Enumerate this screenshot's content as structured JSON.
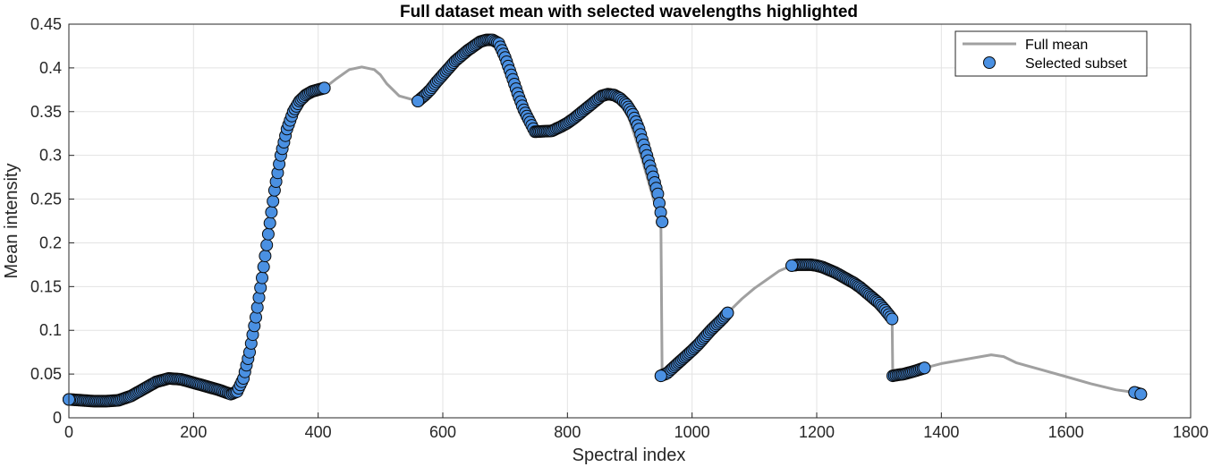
{
  "chart_data": {
    "type": "line",
    "title": "Full dataset mean with selected wavelengths highlighted",
    "xlabel": "Spectral index",
    "ylabel": "Mean intensity",
    "xlim": [
      0,
      1800
    ],
    "ylim": [
      0,
      0.45
    ],
    "x_ticks": [
      "0",
      "200",
      "400",
      "600",
      "800",
      "1000",
      "1200",
      "1400",
      "1600",
      "1800"
    ],
    "y_ticks": [
      "0",
      "0.05",
      "0.1",
      "0.15",
      "0.2",
      "0.25",
      "0.3",
      "0.35",
      "0.4",
      "0.45"
    ],
    "grid": true,
    "legend_position": "top-right",
    "colors": {
      "full_mean": "#a0a0a0",
      "selected_fill": "#4a90e2",
      "selected_edge": "#0a0a0a"
    },
    "series": [
      {
        "name": "Full mean",
        "style": "line",
        "x": [
          0,
          40,
          80,
          100,
          120,
          140,
          160,
          180,
          200,
          220,
          240,
          260,
          270,
          280,
          290,
          300,
          310,
          320,
          330,
          340,
          350,
          360,
          370,
          380,
          390,
          400,
          410,
          430,
          450,
          470,
          490,
          500,
          510,
          530,
          560,
          580,
          600,
          620,
          640,
          660,
          680,
          690,
          700,
          710,
          720,
          730,
          740,
          748,
          760,
          780,
          800,
          810,
          830,
          850,
          860,
          870,
          880,
          890,
          900,
          910,
          920,
          930,
          940,
          950,
          952,
          960,
          970,
          990,
          1010,
          1030,
          1057,
          1080,
          1100,
          1120,
          1140,
          1160,
          1180,
          1200,
          1220,
          1240,
          1260,
          1280,
          1300,
          1321,
          1322,
          1340,
          1360,
          1373,
          1400,
          1440,
          1480,
          1500,
          1520,
          1560,
          1600,
          1640,
          1680,
          1710,
          1720
        ],
        "y": [
          0.021,
          0.019,
          0.02,
          0.025,
          0.033,
          0.041,
          0.045,
          0.044,
          0.04,
          0.036,
          0.032,
          0.027,
          0.03,
          0.045,
          0.075,
          0.115,
          0.16,
          0.21,
          0.26,
          0.3,
          0.33,
          0.35,
          0.362,
          0.369,
          0.373,
          0.375,
          0.377,
          0.388,
          0.398,
          0.401,
          0.398,
          0.392,
          0.382,
          0.368,
          0.362,
          0.375,
          0.392,
          0.408,
          0.42,
          0.43,
          0.432,
          0.428,
          0.412,
          0.392,
          0.371,
          0.352,
          0.338,
          0.327,
          0.326,
          0.33,
          0.337,
          0.342,
          0.352,
          0.364,
          0.37,
          0.37,
          0.366,
          0.355,
          0.34,
          0.318,
          0.295,
          0.27,
          0.245,
          0.224,
          0.048,
          0.051,
          0.056,
          0.068,
          0.082,
          0.1,
          0.12,
          0.136,
          0.148,
          0.158,
          0.168,
          0.174,
          0.175,
          0.173,
          0.167,
          0.16,
          0.152,
          0.143,
          0.131,
          0.113,
          0.048,
          0.05,
          0.054,
          0.057,
          0.062,
          0.067,
          0.072,
          0.07,
          0.063,
          0.055,
          0.047,
          0.039,
          0.032,
          0.029,
          0.027
        ]
      },
      {
        "name": "Selected subset",
        "style": "markers",
        "x": [
          0,
          20,
          40,
          60,
          80,
          100,
          120,
          140,
          160,
          180,
          200,
          220,
          240,
          260,
          270,
          280,
          290,
          300,
          310,
          320,
          330,
          340,
          350,
          360,
          370,
          380,
          390,
          400,
          410,
          560,
          570,
          580,
          590,
          600,
          610,
          620,
          630,
          640,
          650,
          660,
          670,
          680,
          690,
          700,
          710,
          720,
          730,
          740,
          748,
          775,
          790,
          800,
          810,
          855,
          865,
          875,
          885,
          895,
          905,
          915,
          925,
          935,
          945,
          952,
          950,
          960,
          966,
          1000,
          1010,
          1020,
          1030,
          1040,
          1050,
          1057,
          1160,
          1170,
          1180,
          1190,
          1200,
          1210,
          1220,
          1230,
          1240,
          1250,
          1260,
          1270,
          1280,
          1290,
          1300,
          1310,
          1321,
          1322,
          1330,
          1340,
          1350,
          1360,
          1373,
          1710,
          1720
        ],
        "y": [
          0.021,
          0.02,
          0.019,
          0.019,
          0.02,
          0.025,
          0.033,
          0.041,
          0.045,
          0.044,
          0.04,
          0.036,
          0.032,
          0.027,
          0.03,
          0.045,
          0.075,
          0.115,
          0.16,
          0.21,
          0.26,
          0.3,
          0.33,
          0.35,
          0.362,
          0.369,
          0.373,
          0.375,
          0.377,
          0.362,
          0.368,
          0.375,
          0.384,
          0.392,
          0.4,
          0.408,
          0.414,
          0.42,
          0.425,
          0.43,
          0.432,
          0.432,
          0.428,
          0.412,
          0.392,
          0.371,
          0.352,
          0.338,
          0.327,
          0.328,
          0.333,
          0.337,
          0.342,
          0.368,
          0.37,
          0.369,
          0.365,
          0.358,
          0.347,
          0.33,
          0.306,
          0.282,
          0.256,
          0.224,
          0.048,
          0.051,
          0.055,
          0.077,
          0.084,
          0.092,
          0.1,
          0.107,
          0.114,
          0.12,
          0.174,
          0.175,
          0.175,
          0.175,
          0.174,
          0.172,
          0.169,
          0.166,
          0.162,
          0.158,
          0.154,
          0.149,
          0.143,
          0.137,
          0.131,
          0.123,
          0.113,
          0.048,
          0.049,
          0.05,
          0.052,
          0.054,
          0.057,
          0.029,
          0.027
        ]
      }
    ]
  }
}
